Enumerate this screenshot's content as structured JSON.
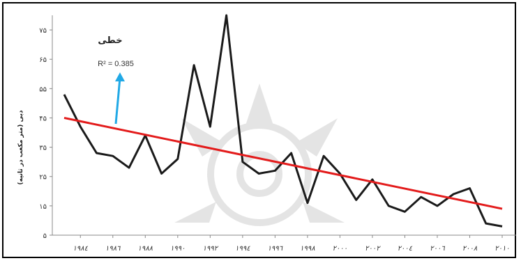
{
  "chart_data": {
    "type": "line",
    "ylabel": "دبی (متر مکعب در ثانیه)",
    "ylim": [
      5,
      80
    ],
    "y_ticks": [
      "۵",
      "۱۵",
      "۲۵",
      "۳۵",
      "۴۵",
      "۵۵",
      "۶۵",
      "۷۵"
    ],
    "y_tick_values": [
      5,
      15,
      25,
      35,
      45,
      55,
      65,
      75
    ],
    "x_ticks": [
      "۱۹۸٤",
      "۱۹۸٦",
      "۱۹۸۸",
      "۱۹۹۰",
      "۱۹۹۲",
      "۱۹۹٤",
      "۱۹۹٦",
      "۱۹۹۸",
      "۲۰۰۰",
      "۲۰۰۲",
      "۲۰۰٤",
      "۲۰۰٦",
      "۲۰۰۸",
      "۲۰۱۰"
    ],
    "x_tick_values": [
      1984,
      1986,
      1988,
      1990,
      1992,
      1994,
      1996,
      1998,
      2000,
      2002,
      2004,
      2006,
      2008,
      2010
    ],
    "xlim": [
      1983,
      2010
    ],
    "grid": false,
    "series": [
      {
        "x": [
          1983,
          1984,
          1985,
          1986,
          1987,
          1988,
          1989,
          1990,
          1991,
          1992,
          1993,
          1994,
          1995,
          1996,
          1997,
          1998,
          1999,
          2000,
          2001,
          2002,
          2003,
          2004,
          2005,
          2006,
          2007,
          2008,
          2009,
          2010
        ],
        "values": [
          53,
          42,
          33,
          32,
          28,
          39,
          26,
          31,
          63,
          42,
          81,
          30,
          26,
          27,
          33,
          16,
          32,
          26,
          17,
          24,
          15,
          13,
          18,
          15,
          19,
          21,
          9,
          8
        ],
        "color": "#1a1a1a"
      }
    ],
    "trendline": {
      "type": "linear",
      "x": [
        1983,
        2010
      ],
      "values": [
        45,
        14
      ],
      "color": "#e31b1b",
      "title": "خطی",
      "r2_label": "R² = 0.385"
    },
    "annotation_arrow_color": "#21a9e6"
  }
}
